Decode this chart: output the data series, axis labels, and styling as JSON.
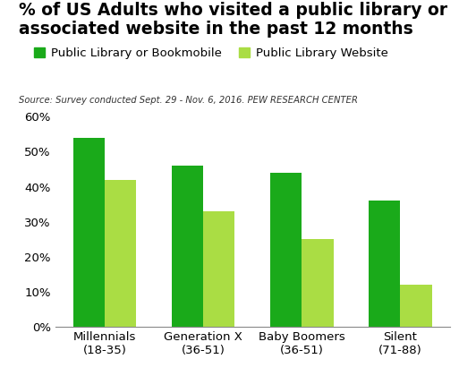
{
  "title_line1": "% of US Adults who visited a public library or",
  "title_line2": "associated website in the past 12 months",
  "source": "Source: Survey conducted Sept. 29 - Nov. 6, 2016. PEW RESEARCH CENTER",
  "categories": [
    "Millennials\n(18-35)",
    "Generation X\n(36-51)",
    "Baby Boomers\n(36-51)",
    "Silent\n(71-88)"
  ],
  "library_values": [
    54,
    46,
    44,
    36
  ],
  "website_values": [
    42,
    33,
    25,
    12
  ],
  "library_color": "#1aaa1a",
  "website_color": "#aadd44",
  "legend_labels": [
    "Public Library or Bookmobile",
    "Public Library Website"
  ],
  "ylim": [
    0,
    60
  ],
  "yticks": [
    0,
    10,
    20,
    30,
    40,
    50,
    60
  ],
  "ytick_labels": [
    "0%",
    "10%",
    "20%",
    "30%",
    "40%",
    "50%",
    "60%"
  ],
  "background_color": "#ffffff",
  "bar_width": 0.32,
  "title_fontsize": 13.5,
  "source_fontsize": 7.2,
  "legend_fontsize": 9.5,
  "tick_fontsize": 9.5
}
